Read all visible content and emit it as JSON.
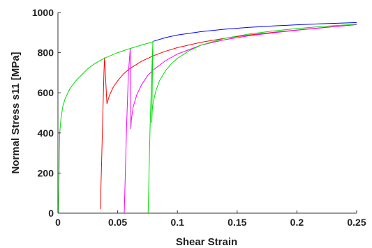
{
  "chart_data": {
    "type": "line",
    "xlabel": "Shear Strain",
    "ylabel": "Normal Stress s11 [MPa]",
    "xlim": [
      0,
      0.25
    ],
    "ylim": [
      0,
      1000
    ],
    "x_ticks": [
      "0",
      "0.05",
      "0.1",
      "0.15",
      "0.2",
      "0.25"
    ],
    "x_tick_values": [
      0,
      0.05,
      0.1,
      0.15,
      0.2,
      0.25
    ],
    "y_ticks": [
      "0",
      "200",
      "400",
      "600",
      "800",
      "1000"
    ],
    "y_tick_values": [
      0,
      200,
      400,
      600,
      800,
      1000
    ],
    "grid": false,
    "legend": "none",
    "series": [
      {
        "color": "#0000ff",
        "x": [
          0.08,
          0.09,
          0.1,
          0.12,
          0.14,
          0.16,
          0.18,
          0.2,
          0.22,
          0.25
        ],
        "y": [
          857,
          875,
          888,
          905,
          917,
          926,
          933,
          939,
          944,
          950
        ]
      },
      {
        "color": "#ff0000",
        "x": [
          0.0355,
          0.0375,
          0.0385,
          0.039,
          0.041,
          0.043,
          0.046,
          0.05,
          0.055,
          0.06,
          0.07,
          0.08,
          0.09,
          0.1,
          0.12,
          0.14,
          0.16,
          0.18,
          0.2,
          0.22,
          0.25
        ],
        "y": [
          20,
          470,
          700,
          776,
          545,
          585,
          625,
          660,
          695,
          720,
          757,
          785,
          807,
          825,
          852,
          872,
          888,
          901,
          913,
          924,
          940
        ]
      },
      {
        "color": "#ff00ff",
        "x": [
          0.0555,
          0.0575,
          0.059,
          0.0605,
          0.061,
          0.0615,
          0.063,
          0.066,
          0.07,
          0.075,
          0.08,
          0.09,
          0.1,
          0.12,
          0.14,
          0.16,
          0.18,
          0.2,
          0.22,
          0.25
        ],
        "y": [
          0,
          440,
          700,
          820,
          420,
          470,
          530,
          590,
          640,
          685,
          715,
          760,
          793,
          838,
          865,
          884,
          899,
          912,
          923,
          940
        ]
      },
      {
        "color": "#00dd00",
        "x": [
          0.0003,
          0.0008,
          0.0012,
          0.0015,
          0.0025,
          0.004,
          0.006,
          0.01,
          0.015,
          0.02,
          0.025,
          0.03,
          0.035,
          0.04,
          0.05,
          0.06,
          0.07,
          0.08
        ],
        "y": [
          0,
          120,
          300,
          400,
          470,
          530,
          570,
          620,
          660,
          690,
          720,
          742,
          760,
          775,
          800,
          820,
          838,
          855
        ]
      },
      {
        "color": "#00dd00",
        "x": [
          0.0755,
          0.077,
          0.0785,
          0.0795,
          0.0785,
          0.079,
          0.08,
          0.082,
          0.085,
          0.09,
          0.095,
          0.1,
          0.11,
          0.12,
          0.14,
          0.16,
          0.18,
          0.2,
          0.22,
          0.25
        ],
        "y": [
          0,
          400,
          700,
          858,
          450,
          520,
          560,
          610,
          660,
          710,
          745,
          772,
          810,
          838,
          872,
          893,
          908,
          920,
          930,
          942
        ]
      }
    ]
  }
}
